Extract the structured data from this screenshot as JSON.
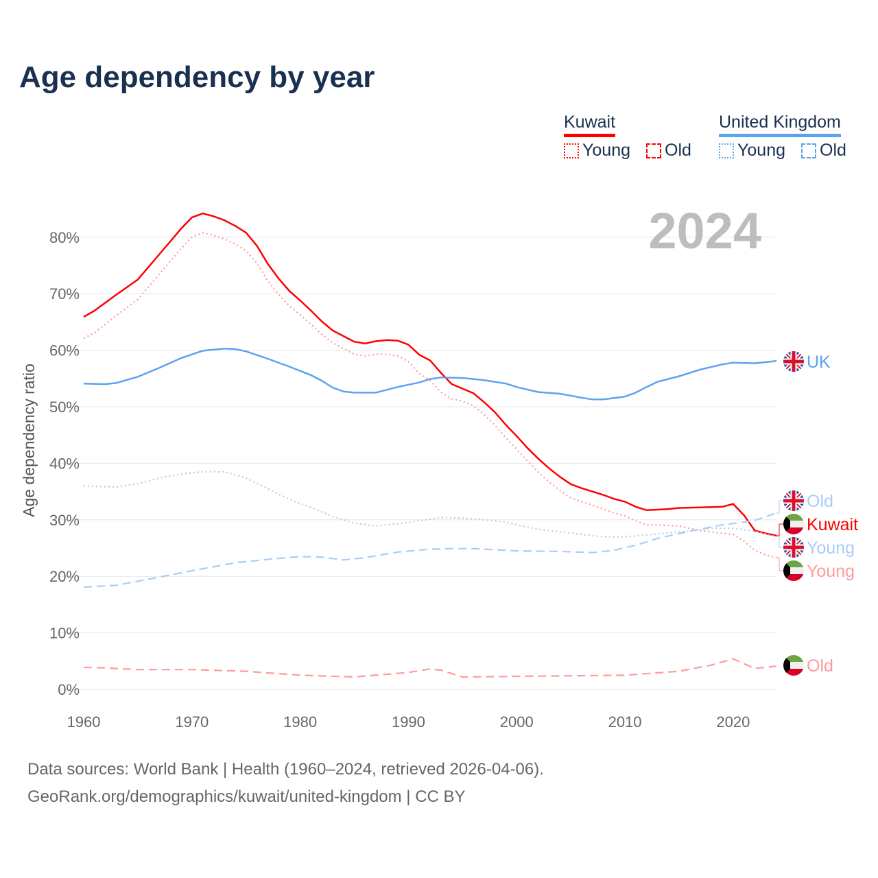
{
  "title": "Age dependency by year",
  "year_label": "2024",
  "legend": {
    "kuwait": {
      "name": "Kuwait",
      "young": "Young",
      "old": "Old"
    },
    "uk": {
      "name": "United Kingdom",
      "young": "Young",
      "old": "Old"
    }
  },
  "end_labels": {
    "uk_total": "UK",
    "uk_old": "Old",
    "kw_total": "Kuwait",
    "uk_young": "Young",
    "kw_young": "Young",
    "kw_old": "Old"
  },
  "colors": {
    "kuwait": "#ff0000",
    "kuwait_light": "#ff9a9a",
    "uk": "#5ba3ef",
    "uk_light": "#a8cdf4"
  },
  "source": [
    "Data sources: World Bank | Health (1960–2024, retrieved 2026-04-06).",
    "GeoRank.org/demographics/kuwait/united-kingdom | CC BY"
  ],
  "chart_data": {
    "type": "line",
    "title": "Age dependency by year",
    "xlabel": "",
    "ylabel": "Age dependency ratio",
    "xlim": [
      1960,
      2024
    ],
    "ylim": [
      0,
      85
    ],
    "xticks": [
      "1960",
      "1970",
      "1980",
      "1990",
      "2000",
      "2010",
      "2020"
    ],
    "yticks": [
      "0%",
      "10%",
      "20%",
      "30%",
      "40%",
      "50%",
      "60%",
      "70%",
      "80%"
    ],
    "grid": true,
    "series": [
      {
        "name": "Kuwait",
        "style": "solid",
        "color": "kuwait",
        "points": [
          [
            1960,
            65.9
          ],
          [
            1961,
            67
          ],
          [
            1963,
            69.8
          ],
          [
            1965,
            72.5
          ],
          [
            1967,
            77
          ],
          [
            1969,
            81.5
          ],
          [
            1970,
            83.5
          ],
          [
            1971,
            84.2
          ],
          [
            1972,
            83.7
          ],
          [
            1973,
            83
          ],
          [
            1974,
            82
          ],
          [
            1975,
            80.8
          ],
          [
            1976,
            78.5
          ],
          [
            1977,
            75.3
          ],
          [
            1978,
            72.7
          ],
          [
            1979,
            70.5
          ],
          [
            1980,
            68.8
          ],
          [
            1981,
            67
          ],
          [
            1982,
            65.1
          ],
          [
            1983,
            63.5
          ],
          [
            1984,
            62.5
          ],
          [
            1985,
            61.5
          ],
          [
            1986,
            61.2
          ],
          [
            1987,
            61.6
          ],
          [
            1988,
            61.8
          ],
          [
            1989,
            61.7
          ],
          [
            1990,
            61
          ],
          [
            1991,
            59.2
          ],
          [
            1992,
            58.2
          ],
          [
            1993,
            56
          ],
          [
            1994,
            54
          ],
          [
            1995,
            53.2
          ],
          [
            1996,
            52.4
          ],
          [
            1997,
            50.8
          ],
          [
            1998,
            49
          ],
          [
            1999,
            46.8
          ],
          [
            2000,
            44.8
          ],
          [
            2001,
            42.7
          ],
          [
            2002,
            40.8
          ],
          [
            2003,
            39.1
          ],
          [
            2004,
            37.6
          ],
          [
            2005,
            36.3
          ],
          [
            2006,
            35.6
          ],
          [
            2007,
            35
          ],
          [
            2008,
            34.4
          ],
          [
            2009,
            33.7
          ],
          [
            2010,
            33.2
          ],
          [
            2011,
            32.3
          ],
          [
            2012,
            31.7
          ],
          [
            2013,
            31.8
          ],
          [
            2014,
            31.9
          ],
          [
            2015,
            32.1
          ],
          [
            2017,
            32.2
          ],
          [
            2019,
            32.3
          ],
          [
            2020,
            32.8
          ],
          [
            2021,
            30.8
          ],
          [
            2022,
            28.1
          ],
          [
            2023,
            27.6
          ],
          [
            2024,
            27.2
          ]
        ]
      },
      {
        "name": "Kuwait Young",
        "style": "dotted",
        "color": "kuwait_light",
        "points": [
          [
            1960,
            62.1
          ],
          [
            1961,
            63.1
          ],
          [
            1963,
            66.1
          ],
          [
            1965,
            69
          ],
          [
            1967,
            73.5
          ],
          [
            1969,
            78
          ],
          [
            1970,
            80
          ],
          [
            1971,
            80.8
          ],
          [
            1972,
            80.3
          ],
          [
            1973,
            79.7
          ],
          [
            1974,
            78.8
          ],
          [
            1975,
            77.6
          ],
          [
            1976,
            75.4
          ],
          [
            1977,
            72.3
          ],
          [
            1978,
            69.9
          ],
          [
            1979,
            67.8
          ],
          [
            1980,
            66.3
          ],
          [
            1981,
            64.6
          ],
          [
            1982,
            62.8
          ],
          [
            1983,
            61.3
          ],
          [
            1984,
            60.3
          ],
          [
            1985,
            59.3
          ],
          [
            1986,
            59
          ],
          [
            1987,
            59.3
          ],
          [
            1988,
            59.3
          ],
          [
            1989,
            59
          ],
          [
            1990,
            58
          ],
          [
            1991,
            55.9
          ],
          [
            1992,
            54.6
          ],
          [
            1993,
            52.6
          ],
          [
            1994,
            51.4
          ],
          [
            1995,
            51
          ],
          [
            1996,
            50.2
          ],
          [
            1997,
            48.6
          ],
          [
            1998,
            46.7
          ],
          [
            1999,
            44.5
          ],
          [
            2000,
            42.5
          ],
          [
            2001,
            40.4
          ],
          [
            2002,
            38.4
          ],
          [
            2003,
            36.7
          ],
          [
            2004,
            35.2
          ],
          [
            2005,
            33.9
          ],
          [
            2006,
            33.2
          ],
          [
            2007,
            32.6
          ],
          [
            2008,
            31.9
          ],
          [
            2009,
            31.2
          ],
          [
            2010,
            30.7
          ],
          [
            2011,
            29.8
          ],
          [
            2012,
            29.1
          ],
          [
            2013,
            29.1
          ],
          [
            2014,
            29
          ],
          [
            2015,
            28.9
          ],
          [
            2017,
            28.1
          ],
          [
            2019,
            27.6
          ],
          [
            2020,
            27.4
          ],
          [
            2021,
            26.2
          ],
          [
            2022,
            24.6
          ],
          [
            2023,
            23.8
          ],
          [
            2024,
            23.3
          ]
        ]
      },
      {
        "name": "Kuwait Old",
        "style": "dashed",
        "color": "kuwait_light",
        "points": [
          [
            1960,
            3.9
          ],
          [
            1962,
            3.8
          ],
          [
            1965,
            3.5
          ],
          [
            1970,
            3.5
          ],
          [
            1975,
            3.2
          ],
          [
            1980,
            2.5
          ],
          [
            1985,
            2.2
          ],
          [
            1990,
            3
          ],
          [
            1992,
            3.6
          ],
          [
            1993,
            3.4
          ],
          [
            1995,
            2.2
          ],
          [
            2000,
            2.3
          ],
          [
            2005,
            2.4
          ],
          [
            2010,
            2.5
          ],
          [
            2015,
            3.2
          ],
          [
            2018,
            4.3
          ],
          [
            2020,
            5.4
          ],
          [
            2022,
            3.7
          ],
          [
            2024,
            4.1
          ]
        ]
      },
      {
        "name": "United Kingdom",
        "style": "solid",
        "color": "uk",
        "points": [
          [
            1960,
            54.1
          ],
          [
            1962,
            54
          ],
          [
            1963,
            54.2
          ],
          [
            1965,
            55.3
          ],
          [
            1967,
            56.9
          ],
          [
            1969,
            58.6
          ],
          [
            1971,
            59.9
          ],
          [
            1973,
            60.3
          ],
          [
            1974,
            60.2
          ],
          [
            1975,
            59.8
          ],
          [
            1977,
            58.5
          ],
          [
            1979,
            57.1
          ],
          [
            1981,
            55.6
          ],
          [
            1982,
            54.6
          ],
          [
            1983,
            53.4
          ],
          [
            1984,
            52.7
          ],
          [
            1985,
            52.5
          ],
          [
            1987,
            52.5
          ],
          [
            1989,
            53.5
          ],
          [
            1991,
            54.3
          ],
          [
            1992,
            54.9
          ],
          [
            1993,
            55.2
          ],
          [
            1995,
            55.1
          ],
          [
            1997,
            54.7
          ],
          [
            1999,
            54.1
          ],
          [
            2000,
            53.5
          ],
          [
            2002,
            52.6
          ],
          [
            2004,
            52.3
          ],
          [
            2006,
            51.6
          ],
          [
            2007,
            51.3
          ],
          [
            2008,
            51.3
          ],
          [
            2010,
            51.8
          ],
          [
            2011,
            52.5
          ],
          [
            2012,
            53.5
          ],
          [
            2013,
            54.4
          ],
          [
            2015,
            55.4
          ],
          [
            2017,
            56.6
          ],
          [
            2019,
            57.5
          ],
          [
            2020,
            57.8
          ],
          [
            2022,
            57.7
          ],
          [
            2024,
            58.1
          ]
        ]
      },
      {
        "name": "United Kingdom Young",
        "style": "dotted",
        "color": "uk_light",
        "points": [
          [
            1960,
            36
          ],
          [
            1963,
            35.8
          ],
          [
            1965,
            36.4
          ],
          [
            1967,
            37.4
          ],
          [
            1969,
            38.1
          ],
          [
            1971,
            38.5
          ],
          [
            1973,
            38.5
          ],
          [
            1975,
            37.4
          ],
          [
            1977,
            35.5
          ],
          [
            1979,
            33.6
          ],
          [
            1981,
            32.2
          ],
          [
            1983,
            30.6
          ],
          [
            1985,
            29.4
          ],
          [
            1987,
            28.9
          ],
          [
            1989,
            29.3
          ],
          [
            1991,
            29.8
          ],
          [
            1993,
            30.4
          ],
          [
            1995,
            30.3
          ],
          [
            1997,
            30
          ],
          [
            1999,
            29.6
          ],
          [
            2000,
            29.1
          ],
          [
            2002,
            28.3
          ],
          [
            2004,
            27.9
          ],
          [
            2006,
            27.4
          ],
          [
            2008,
            27
          ],
          [
            2010,
            27
          ],
          [
            2012,
            27.3
          ],
          [
            2014,
            27.7
          ],
          [
            2016,
            28
          ],
          [
            2018,
            28.5
          ],
          [
            2020,
            28.5
          ],
          [
            2022,
            28
          ],
          [
            2024,
            27
          ]
        ]
      },
      {
        "name": "United Kingdom Old",
        "style": "dashed",
        "color": "uk_light",
        "points": [
          [
            1960,
            18.1
          ],
          [
            1963,
            18.4
          ],
          [
            1966,
            19.5
          ],
          [
            1970,
            21
          ],
          [
            1974,
            22.4
          ],
          [
            1977,
            23
          ],
          [
            1980,
            23.5
          ],
          [
            1982,
            23.4
          ],
          [
            1984,
            22.9
          ],
          [
            1986,
            23.3
          ],
          [
            1989,
            24.3
          ],
          [
            1992,
            24.8
          ],
          [
            1994,
            24.9
          ],
          [
            1996,
            24.9
          ],
          [
            2000,
            24.5
          ],
          [
            2004,
            24.4
          ],
          [
            2007,
            24.2
          ],
          [
            2009,
            24.6
          ],
          [
            2011,
            25.5
          ],
          [
            2013,
            26.7
          ],
          [
            2016,
            28
          ],
          [
            2019,
            29.1
          ],
          [
            2021,
            29.6
          ],
          [
            2022,
            29.9
          ],
          [
            2024,
            31.2
          ]
        ]
      }
    ]
  }
}
